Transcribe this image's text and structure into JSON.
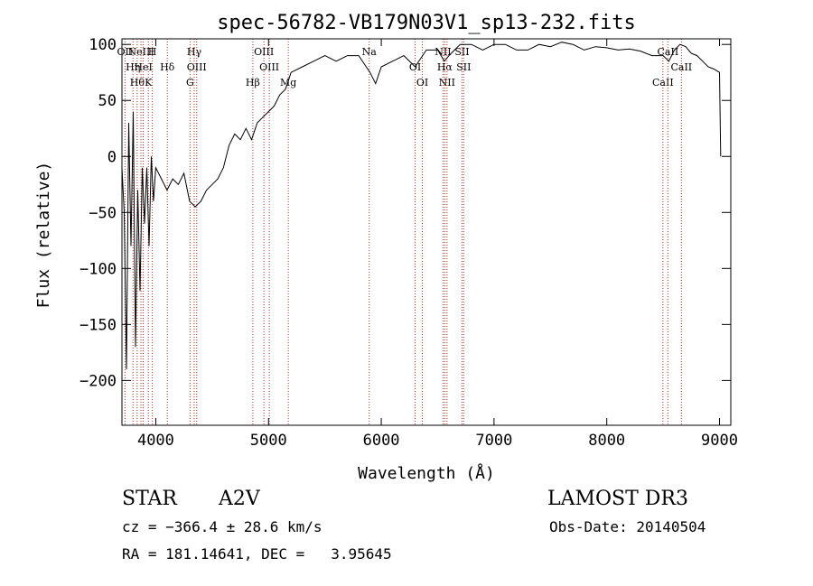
{
  "chart_data": {
    "type": "line",
    "title": "spec-56782-VB179N03V1_sp13-232.fits",
    "xlabel": "Wavelength (Å)",
    "ylabel": "Flux (relative)",
    "xlim": [
      3700,
      9100
    ],
    "ylim": [
      -240,
      105
    ],
    "x_ticks": [
      4000,
      5000,
      6000,
      7000,
      8000,
      9000
    ],
    "y_ticks": [
      -200,
      -150,
      -100,
      -50,
      0,
      50,
      100
    ],
    "grid": false,
    "series": [
      {
        "x": [
          3700,
          3720,
          3740,
          3760,
          3780,
          3800,
          3820,
          3840,
          3860,
          3880,
          3900,
          3920,
          3940,
          3960,
          3980,
          4000,
          4050,
          4100,
          4150,
          4200,
          4250,
          4300,
          4350,
          4400,
          4450,
          4500,
          4550,
          4600,
          4650,
          4700,
          4750,
          4800,
          4850,
          4900,
          4950,
          5000,
          5050,
          5100,
          5150,
          5200,
          5300,
          5400,
          5500,
          5600,
          5700,
          5800,
          5900,
          5950,
          6000,
          6100,
          6200,
          6300,
          6400,
          6500,
          6560,
          6600,
          6700,
          6800,
          6900,
          7000,
          7100,
          7200,
          7300,
          7400,
          7500,
          7600,
          7700,
          7800,
          7900,
          8000,
          8100,
          8200,
          8300,
          8400,
          8500,
          8550,
          8600,
          8650,
          8700,
          8750,
          8800,
          8850,
          8900,
          8950,
          9000,
          9010
        ],
        "y": [
          -10,
          -50,
          -190,
          30,
          -80,
          40,
          -170,
          -30,
          -120,
          -10,
          -60,
          -10,
          -80,
          0,
          -40,
          -10,
          -20,
          -30,
          -20,
          -25,
          -15,
          -40,
          -45,
          -40,
          -30,
          -25,
          -20,
          -10,
          10,
          20,
          15,
          25,
          15,
          30,
          35,
          40,
          45,
          55,
          60,
          75,
          80,
          85,
          90,
          85,
          90,
          90,
          75,
          65,
          80,
          85,
          90,
          80,
          95,
          95,
          85,
          90,
          100,
          100,
          95,
          100,
          100,
          95,
          95,
          100,
          98,
          102,
          100,
          95,
          98,
          97,
          95,
          96,
          94,
          90,
          90,
          85,
          95,
          100,
          98,
          92,
          90,
          85,
          80,
          78,
          75,
          0
        ],
        "color": "#000000"
      }
    ],
    "line_markers": [
      {
        "wavelength": 3727,
        "label": "OII"
      },
      {
        "wavelength": 3798,
        "label": "Hη"
      },
      {
        "wavelength": 3835,
        "label": "Hθ"
      },
      {
        "wavelength": 3869,
        "label": "NeIII"
      },
      {
        "wavelength": 3889,
        "label": "HeI"
      },
      {
        "wavelength": 3934,
        "label": "K"
      },
      {
        "wavelength": 3969,
        "label": "H"
      },
      {
        "wavelength": 4102,
        "label": "Hδ"
      },
      {
        "wavelength": 4304,
        "label": "G"
      },
      {
        "wavelength": 4341,
        "label": "Hγ"
      },
      {
        "wavelength": 4363,
        "label": "OIII"
      },
      {
        "wavelength": 4861,
        "label": "Hβ"
      },
      {
        "wavelength": 4959,
        "label": "OIII"
      },
      {
        "wavelength": 5007,
        "label": "OIII"
      },
      {
        "wavelength": 5175,
        "label": "Mg"
      },
      {
        "wavelength": 5893,
        "label": "Na"
      },
      {
        "wavelength": 6300,
        "label": "OI"
      },
      {
        "wavelength": 6364,
        "label": "OI"
      },
      {
        "wavelength": 6548,
        "label": "NII"
      },
      {
        "wavelength": 6563,
        "label": "Hα"
      },
      {
        "wavelength": 6583,
        "label": "NII"
      },
      {
        "wavelength": 6716,
        "label": "SII"
      },
      {
        "wavelength": 6731,
        "label": "SII"
      },
      {
        "wavelength": 8498,
        "label": "CaII"
      },
      {
        "wavelength": 8542,
        "label": "CaII"
      },
      {
        "wavelength": 8662,
        "label": "CaII"
      }
    ]
  },
  "info": {
    "object_class": "STAR",
    "subclass": "A2V",
    "survey": "LAMOST DR3",
    "redshift_line": "cz = −366.4 ± 28.6 km/s",
    "obs_date_line": "Obs-Date: 20140504",
    "coords_line": "RA = 181.14641, DEC =   3.95645"
  },
  "colors": {
    "spectrum": "#000000",
    "line_marker": "#b03020",
    "axes": "#000000",
    "background": "#ffffff"
  }
}
